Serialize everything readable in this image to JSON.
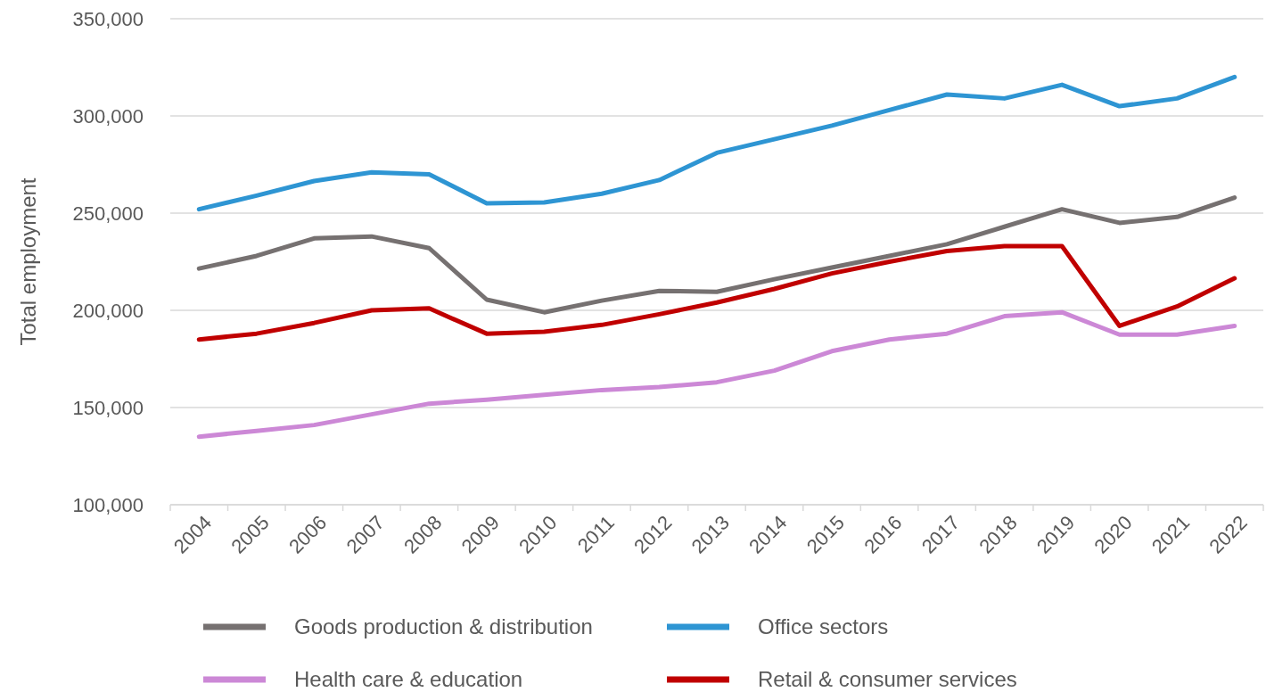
{
  "chart_data": {
    "type": "line",
    "ylabel": "Total employment",
    "categories": [
      "2004",
      "2005",
      "2006",
      "2007",
      "2008",
      "2009",
      "2010",
      "2011",
      "2012",
      "2013",
      "2014",
      "2015",
      "2016",
      "2017",
      "2018",
      "2019",
      "2020",
      "2021",
      "2022"
    ],
    "series": [
      {
        "name": "Goods production & distribution",
        "color": "#767171",
        "values": [
          221500,
          228000,
          237000,
          238000,
          232000,
          205500,
          199000,
          205000,
          210000,
          209500,
          216000,
          222000,
          228000,
          234000,
          243000,
          252000,
          245000,
          248000,
          258000
        ]
      },
      {
        "name": "Office sectors",
        "color": "#2e95d3",
        "values": [
          252000,
          259000,
          266500,
          271000,
          270000,
          255000,
          255500,
          260000,
          267000,
          281000,
          288000,
          295000,
          303000,
          311000,
          309000,
          316000,
          305000,
          309000,
          320000
        ]
      },
      {
        "name": "Health care & education",
        "color": "#cc88d6",
        "values": [
          135000,
          138000,
          141000,
          146500,
          152000,
          154000,
          156500,
          159000,
          160500,
          163000,
          169000,
          179000,
          185000,
          188000,
          197000,
          199000,
          187500,
          187500,
          192000
        ]
      },
      {
        "name": "Retail & consumer services",
        "color": "#c00000",
        "values": [
          185000,
          188000,
          193500,
          200000,
          201000,
          188000,
          189000,
          192500,
          198000,
          204000,
          211000,
          219000,
          225000,
          230500,
          233000,
          233000,
          192000,
          202000,
          216500
        ]
      }
    ],
    "ylim": [
      100000,
      350000
    ],
    "yticks": [
      {
        "value": 100000,
        "label": "100,000"
      },
      {
        "value": 150000,
        "label": "150,000"
      },
      {
        "value": 200000,
        "label": "200,000"
      },
      {
        "value": 250000,
        "label": "250,000"
      },
      {
        "value": 300000,
        "label": "300,000"
      },
      {
        "value": 350000,
        "label": "350,000"
      }
    ],
    "grid": "y",
    "legend": "bottom",
    "line_style": "solid",
    "marker": "none"
  }
}
